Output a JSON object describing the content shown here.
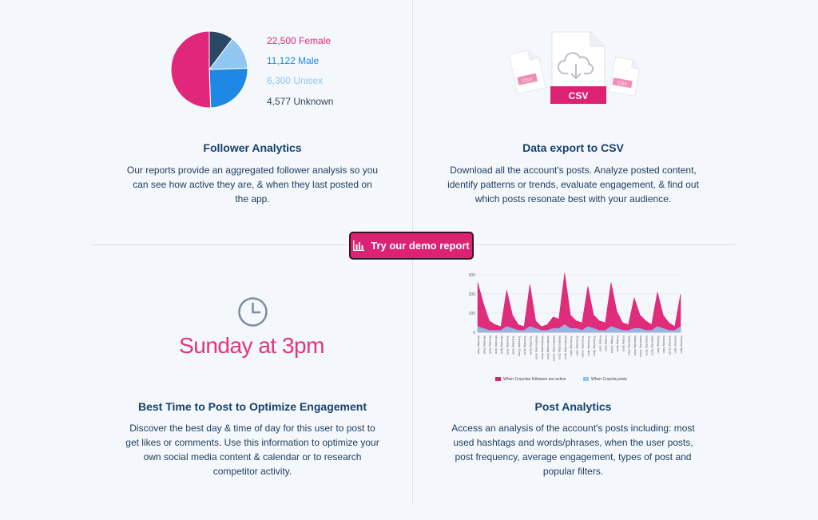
{
  "demo_button": {
    "label": "Try our demo report",
    "icon": "bar-chart-icon"
  },
  "follower": {
    "title": "Follower Analytics",
    "description": "Our reports provide an aggregated follower analysis so you can see how active they are, & when they last posted on the app.",
    "legend": [
      {
        "label": "22,500 Female",
        "color": "#e0277a",
        "value": 22500
      },
      {
        "label": "11,122 Male",
        "color": "#1e88e5",
        "value": 11122
      },
      {
        "label": "6,300 Unisex",
        "color": "#90c6f2",
        "value": 6300
      },
      {
        "label": "4,577 Unknown",
        "color": "#2c4766",
        "value": 4577
      }
    ]
  },
  "csv": {
    "title": "Data export to CSV",
    "description": "Download all the account's posts. Analyze posted content, identify patterns or trends, evaluate engagement, & find out which posts resonate best with your audience.",
    "main_label": "CSV",
    "small_label": "CSV",
    "accent": "#e0277a"
  },
  "best_time": {
    "title": "Best Time to Post to Optimize Engagement",
    "value": "Sunday at 3pm",
    "description": "Discover the best day & time of day for this user to post to get likes or comments. Use this information to optimize your own social media content & calendar or to research competitor activity."
  },
  "post_analytics": {
    "title": "Post Analytics",
    "description": "Access an analysis of the account's posts including: most used hashtags and words/phrases, when the user posts, post frequency, average engagement, types of post and popular filters."
  },
  "chart_data": [
    {
      "type": "pie",
      "categories": [
        "Female",
        "Male",
        "Unisex",
        "Unknown"
      ],
      "values": [
        22500,
        11122,
        6300,
        4577
      ]
    },
    {
      "type": "area",
      "ylim": [
        0,
        300
      ],
      "yticks": [
        0,
        100,
        200,
        300
      ],
      "x": [
        "Monday 3am",
        "Monday 6am",
        "Monday 9am",
        "Monday 3pm",
        "Monday 9pm",
        "Tuesday 3am",
        "Tuesday 9am",
        "Tuesday 11am",
        "Tuesday 3pm",
        "Tuesday 9pm",
        "Wednesday 3am",
        "Wednesday 6am",
        "Wednesday 9am",
        "Wednesday 11am",
        "Wednesday 3pm",
        "Wednesday 9pm",
        "Thursday 3am",
        "Thursday 9am",
        "Thursday 11am",
        "Thursday 3pm",
        "Thursday 9pm",
        "Friday 3am",
        "Friday 9am",
        "Friday 11am",
        "Friday 3pm",
        "Friday 9pm",
        "Saturday 3am",
        "Saturday 9am",
        "Saturday 11am",
        "Saturday 3pm",
        "Saturday 9pm",
        "Sunday 3am",
        "Sunday 9am",
        "Sunday 11am",
        "Sunday 3pm",
        "Sunday 9pm"
      ],
      "series": [
        {
          "name": "When Crayolas followers are active",
          "color": "#dd2274",
          "values": [
            260,
            150,
            60,
            40,
            30,
            220,
            90,
            40,
            30,
            250,
            60,
            30,
            40,
            80,
            70,
            310,
            90,
            60,
            50,
            240,
            90,
            60,
            50,
            260,
            110,
            50,
            40,
            180,
            90,
            60,
            40,
            210,
            90,
            50,
            30,
            200
          ]
        },
        {
          "name": "When Crayola posts",
          "color": "#8fc3ee",
          "values": [
            30,
            20,
            10,
            10,
            10,
            30,
            20,
            10,
            10,
            30,
            20,
            10,
            10,
            20,
            20,
            40,
            20,
            20,
            10,
            30,
            20,
            10,
            10,
            30,
            20,
            10,
            10,
            20,
            20,
            10,
            10,
            30,
            20,
            10,
            10,
            30
          ]
        }
      ]
    }
  ]
}
